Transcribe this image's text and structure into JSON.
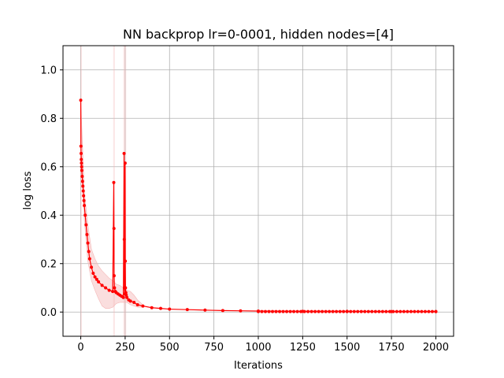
{
  "chart_data": {
    "type": "line",
    "title": "NN backprop lr=0-0001, hidden nodes=[4]",
    "xlabel": "Iterations",
    "ylabel": "log loss",
    "xlim": [
      -100,
      2100
    ],
    "ylim": [
      -0.1,
      1.1
    ],
    "xticks": [
      0,
      250,
      500,
      750,
      1000,
      1250,
      1500,
      1750,
      2000
    ],
    "xtick_labels": [
      "0",
      "250",
      "500",
      "750",
      "1000",
      "1250",
      "1500",
      "1750",
      "2000"
    ],
    "yticks": [
      0.0,
      0.2,
      0.4,
      0.6,
      0.8,
      1.0
    ],
    "ytick_labels": [
      "0.0",
      "0.2",
      "0.4",
      "0.6",
      "0.8",
      "1.0"
    ],
    "grid": true,
    "colors": {
      "line": "#ff0000",
      "band": "#f4b6b6",
      "grid": "#b0b0b0"
    },
    "series": [
      {
        "name": "loss",
        "x": [
          0,
          1,
          2,
          3,
          4,
          5,
          6,
          8,
          10,
          12,
          14,
          16,
          18,
          20,
          25,
          30,
          35,
          40,
          45,
          50,
          60,
          70,
          80,
          90,
          100,
          120,
          140,
          160,
          180,
          186,
          187,
          188,
          190,
          195,
          200,
          210,
          220,
          230,
          240,
          244,
          245,
          246,
          248,
          250,
          251,
          252,
          254,
          256,
          260,
          270,
          280,
          300,
          320,
          350,
          400,
          450,
          500,
          600,
          700,
          800,
          900,
          1000,
          1250,
          1500,
          1750,
          2000
        ],
        "y": [
          0.875,
          0.685,
          0.655,
          0.63,
          0.615,
          0.6,
          0.585,
          0.56,
          0.54,
          0.52,
          0.5,
          0.48,
          0.46,
          0.44,
          0.4,
          0.36,
          0.32,
          0.285,
          0.25,
          0.22,
          0.185,
          0.16,
          0.145,
          0.135,
          0.125,
          0.11,
          0.1,
          0.09,
          0.085,
          0.535,
          0.345,
          0.15,
          0.1,
          0.085,
          0.08,
          0.075,
          0.07,
          0.065,
          0.06,
          0.655,
          0.3,
          0.1,
          0.075,
          0.615,
          0.21,
          0.1,
          0.08,
          0.07,
          0.06,
          0.05,
          0.045,
          0.04,
          0.03,
          0.025,
          0.018,
          0.015,
          0.012,
          0.01,
          0.008,
          0.006,
          0.005,
          0.004,
          0.003,
          0.003,
          0.002,
          0.002
        ]
      }
    ],
    "band": {
      "x": [
        0,
        20,
        40,
        60,
        80,
        100,
        120,
        140,
        160,
        180,
        200,
        220,
        240,
        260,
        280,
        300,
        320,
        350
      ],
      "upper": [
        0.875,
        0.5,
        0.36,
        0.26,
        0.22,
        0.19,
        0.17,
        0.155,
        0.14,
        0.13,
        0.115,
        0.11,
        0.1,
        0.09,
        0.085,
        0.07,
        0.05,
        0.03
      ],
      "lower": [
        0.875,
        0.38,
        0.21,
        0.13,
        0.09,
        0.055,
        0.025,
        0.015,
        0.015,
        0.02,
        0.035,
        0.04,
        0.04,
        0.04,
        0.03,
        0.025,
        0.02,
        0.02
      ]
    },
    "vertical_bands": [
      {
        "x0": -2,
        "x1": 6
      },
      {
        "x0": 183,
        "x1": 192
      },
      {
        "x0": 240,
        "x1": 256
      }
    ]
  }
}
